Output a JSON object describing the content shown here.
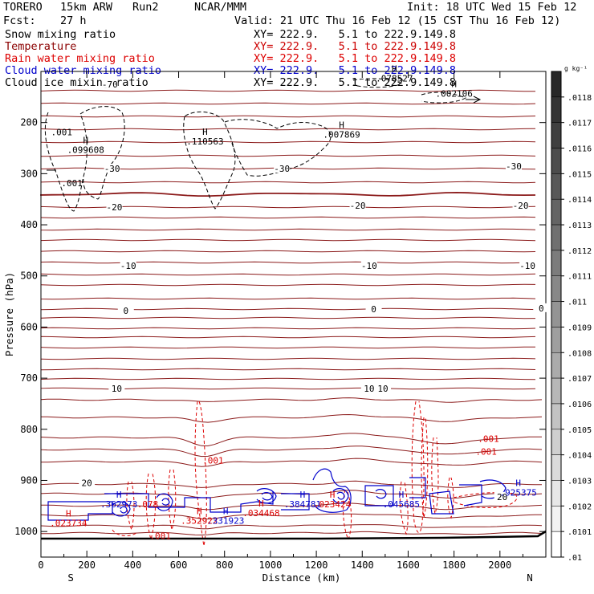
{
  "header": {
    "model": "TORERO",
    "res": "15km ARW",
    "run": "Run2",
    "org": "NCAR/MMM",
    "init": "Init: 18 UTC Wed 15 Feb 12",
    "fcst_label": "Fcst:",
    "fcst_hours": "27 h",
    "valid": "Valid: 21 UTC Thu 16 Feb 12 (15 CST Thu 16 Feb 12)"
  },
  "legend": [
    {
      "name": "Snow mixing ratio",
      "xy": "XY= 222.9.   5.1 to 222.9.149.8",
      "color": "#000000"
    },
    {
      "name": "Temperature",
      "xy": "XY= 222.9.   5.1 to 222.9.149.8",
      "color": "#8b0000"
    },
    {
      "name": "Rain water mixing ratio",
      "xy": "XY= 222.9.   5.1 to 222.9.149.8",
      "color": "#dd0000"
    },
    {
      "name": "Cloud water mixing ratio",
      "xy": "XY= 222.9.   5.1 to 222.9.149.8",
      "color": "#0000cc"
    },
    {
      "name": "Cloud ice mixing ratio",
      "xy": "XY= 222.9.   5.1 to 222.9.149.8",
      "color": "#000000"
    }
  ],
  "chart_data": {
    "type": "contour-cross-section",
    "xlabel": "Distance (km)",
    "ylabel": "Pressure (hPa)",
    "xlim": [
      0,
      2200
    ],
    "ylim": [
      1050,
      100
    ],
    "x_ticks": [
      0,
      200,
      400,
      600,
      800,
      1000,
      1200,
      1400,
      1600,
      1800,
      2000
    ],
    "x_tick_labels": [
      "0",
      "200",
      "400",
      "600",
      "800",
      "1000",
      "1200",
      "1400",
      "1600",
      "1800",
      "2000"
    ],
    "y_ticks": [
      200,
      300,
      400,
      500,
      600,
      700,
      800,
      900,
      1000
    ],
    "y_tick_labels": [
      "200",
      "300",
      "400",
      "500",
      "600",
      "700",
      "800",
      "900",
      "1000"
    ],
    "endpoint_left": "S",
    "endpoint_right": "N",
    "temperature_contours": [
      {
        "label": "-70",
        "x": 300,
        "p": 125
      },
      {
        "label": "-30",
        "x": 310,
        "p": 290
      },
      {
        "label": "-30",
        "x": 1050,
        "p": 290
      },
      {
        "label": "-30",
        "x": 2060,
        "p": 285
      },
      {
        "label": "-20",
        "x": 320,
        "p": 365
      },
      {
        "label": "-20",
        "x": 1380,
        "p": 362
      },
      {
        "label": "-20",
        "x": 2090,
        "p": 362
      },
      {
        "label": "-10",
        "x": 380,
        "p": 480
      },
      {
        "label": "-10",
        "x": 1430,
        "p": 480
      },
      {
        "label": "-10",
        "x": 2120,
        "p": 480
      },
      {
        "label": "0",
        "x": 370,
        "p": 568
      },
      {
        "label": "0",
        "x": 1450,
        "p": 565
      },
      {
        "label": "0",
        "x": 2180,
        "p": 563
      },
      {
        "label": "10",
        "x": 330,
        "p": 720
      },
      {
        "label": "10",
        "x": 1430,
        "p": 720
      },
      {
        "label": "10",
        "x": 1490,
        "p": 720
      },
      {
        "label": "20",
        "x": 200,
        "p": 905
      },
      {
        "label": "20",
        "x": 2010,
        "p": 932
      }
    ],
    "maxima_labels": [
      {
        "mark": "H",
        "value": ".099608",
        "x": 195,
        "p": 255,
        "color": "#000000"
      },
      {
        "mark": "H",
        "value": ".110563",
        "x": 715,
        "p": 238,
        "color": "#000000"
      },
      {
        "mark": "H",
        "value": ".007869",
        "x": 1310,
        "p": 225,
        "color": "#000000"
      },
      {
        "mark": "H",
        "value": ".002106",
        "x": 1800,
        "p": 145,
        "color": "#000000"
      },
      {
        "mark": "H",
        "value": ".078527",
        "x": 1540,
        "p": 115,
        "color": "#000000"
      },
      {
        "mark": "",
        "value": ".001",
        "x": 90,
        "p": 220,
        "color": "#000000"
      },
      {
        "mark": "",
        "value": ".001",
        "x": 135,
        "p": 320,
        "color": "#000000"
      },
      {
        "mark": "H",
        "value": ".023734",
        "x": 120,
        "p": 985,
        "color": "#dd0000"
      },
      {
        "mark": "H",
        "value": ".362973",
        "x": 340,
        "p": 948,
        "color": "#0000cc"
      },
      {
        "mark": "",
        "value": ".078",
        "x": 465,
        "p": 948,
        "color": "#dd0000"
      },
      {
        "mark": "H",
        "value": ".352922",
        "x": 690,
        "p": 980,
        "color": "#dd0000"
      },
      {
        "mark": "H",
        "value": ".331923",
        "x": 805,
        "p": 980,
        "color": "#0000cc"
      },
      {
        "mark": "H",
        "value": ".034468",
        "x": 960,
        "p": 965,
        "color": "#dd0000"
      },
      {
        "mark": "H",
        "value": ".384781",
        "x": 1140,
        "p": 948,
        "color": "#0000cc"
      },
      {
        "mark": "H",
        "value": ".023424",
        "x": 1270,
        "p": 948,
        "color": "#dd0000"
      },
      {
        "mark": "H",
        "value": ".045685",
        "x": 1570,
        "p": 948,
        "color": "#0000cc"
      },
      {
        "mark": "H",
        "value": ".925375",
        "x": 2080,
        "p": 925,
        "color": "#0000cc"
      },
      {
        "mark": "",
        "value": ".001",
        "x": 750,
        "p": 862,
        "color": "#dd0000"
      },
      {
        "mark": "",
        "value": ".001",
        "x": 1950,
        "p": 820,
        "color": "#dd0000"
      },
      {
        "mark": "",
        "value": ".001",
        "x": 1940,
        "p": 845,
        "color": "#dd0000"
      },
      {
        "mark": "",
        "value": ".001",
        "x": 520,
        "p": 1010,
        "color": "#dd0000"
      }
    ],
    "colorbar": {
      "unit": "g kg⁻¹",
      "tick_labels": [
        ".0118",
        ".0117",
        ".0116",
        ".0115",
        ".0114",
        ".0113",
        ".0112",
        ".0111",
        ".011",
        ".0109",
        ".0108",
        ".0107",
        ".0106",
        ".0105",
        ".0104",
        ".0103",
        ".0102",
        ".0101",
        ".01"
      ]
    }
  }
}
